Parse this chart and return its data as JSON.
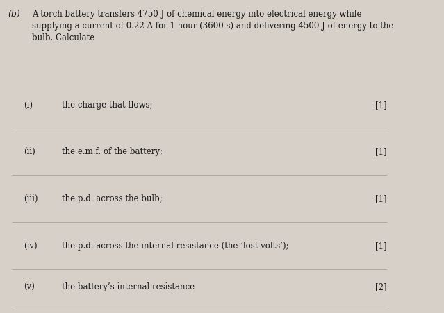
{
  "bg_color": "#d6d0c8",
  "text_color": "#1a1a1a",
  "part_label": "(b)",
  "intro_text": "A torch battery transfers 4750 J of chemical energy into electrical energy while\nsupplying a current of 0.22 A for 1 hour (3600 s) and delivering 4500 J of energy to the\nbulb. Calculate",
  "questions": [
    {
      "roman": "(i)",
      "text": "the charge that flows;",
      "marks": "[1]"
    },
    {
      "roman": "(ii)",
      "text": "the e.m.f. of the battery;",
      "marks": "[1]"
    },
    {
      "roman": "(iii)",
      "text": "the p.d. across the bulb;",
      "marks": "[1]"
    },
    {
      "roman": "(iv)",
      "text": "the p.d. across the internal resistance (the ‘lost volts’);",
      "marks": "[1]"
    },
    {
      "roman": "(v)",
      "text": "the battery’s internal resistance",
      "marks": "[2]"
    }
  ],
  "line_color": "#aaa8a0",
  "font_family": "DejaVu Serif",
  "figsize": [
    6.39,
    4.52
  ],
  "dpi": 100
}
